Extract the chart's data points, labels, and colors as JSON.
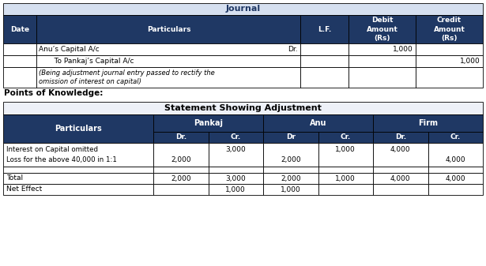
{
  "header_bg": "#1F3864",
  "header_text": "#FFFFFF",
  "white_bg": "#FFFFFF",
  "border_color": "#000000",
  "title_text": "Journal",
  "title_bg": "#D6E0F0",
  "title_text_color": "#1F3864",
  "statement_title": "Statement Showing Adjustment",
  "stmt_title_bg": "#FFFFFF",
  "points_text": "Points of Knowledge:",
  "journal_headers": [
    "Date",
    "Particulars",
    "L.F.",
    "Debit\nAmount\n(Rs)",
    "Credit\nAmount\n(Rs)"
  ],
  "journal_col_ratios": [
    0.07,
    0.55,
    0.1,
    0.14,
    0.14
  ],
  "row1_particulars": "Anu’s Capital A/c",
  "row1_dr": "Dr.",
  "row1_debit": "1,000",
  "row2_particulars": "   To Pankaj’s Capital A/c",
  "row2_credit": "1,000",
  "row3_particulars": "(Being adjustment journal entry passed to rectify the\nomission of interest on capital)",
  "stmt_particulars_col": "Particulars",
  "stmt_pankaj": "Pankaj",
  "stmt_anu": "Anu",
  "stmt_firm": "Firm",
  "stmt_dr1": "Dr.",
  "stmt_cr1": "Cr.",
  "stmt_dr2": "Dr",
  "stmt_cr2": "Cr.",
  "stmt_dr3": "Dr.",
  "stmt_cr3": "Cr.",
  "interest_pankaj_cr": "3,000",
  "interest_anu_cr": "1,000",
  "interest_firm_dr": "4,000",
  "loss_pankaj_dr": "2,000",
  "loss_anu_dr": "2,000",
  "loss_firm_cr": "4,000",
  "total_row": [
    "Total",
    "2,000",
    "3,000",
    "2,000",
    "1,000",
    "4,000",
    "4,000"
  ],
  "net_effect_row": [
    "Net Effect",
    "",
    "1,000",
    "1,000",
    "",
    "",
    ""
  ]
}
